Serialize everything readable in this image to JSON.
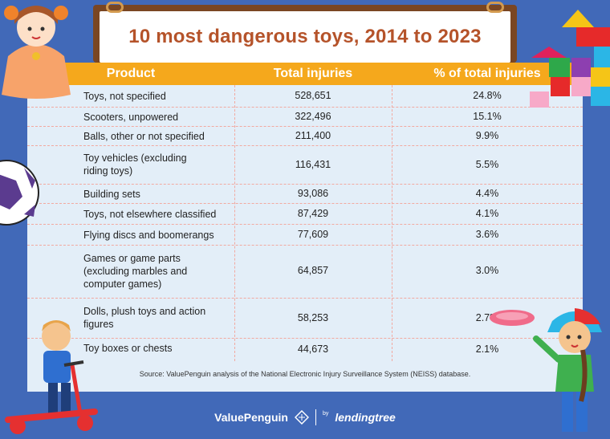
{
  "title": "10 most dangerous toys, 2014 to 2023",
  "columns": [
    "Product",
    "Total injuries",
    "% of total injuries"
  ],
  "rows": [
    {
      "product": "Toys, not specified",
      "injuries": "528,651",
      "pct": "24.8%"
    },
    {
      "product": "Scooters, unpowered",
      "injuries": "322,496",
      "pct": "15.1%"
    },
    {
      "product": "Balls, other or not specified",
      "injuries": "211,400",
      "pct": "9.9%"
    },
    {
      "product": "Toy vehicles (excluding riding toys)",
      "injuries": "116,431",
      "pct": "5.5%"
    },
    {
      "product": "Building sets",
      "injuries": "93,086",
      "pct": "4.4%"
    },
    {
      "product": "Toys, not elsewhere classified",
      "injuries": "87,429",
      "pct": "4.1%"
    },
    {
      "product": "Flying discs and boomerangs",
      "injuries": "77,609",
      "pct": "3.6%"
    },
    {
      "product": "Games or game parts (excluding marbles and computer games)",
      "injuries": "64,857",
      "pct": "3.0%"
    },
    {
      "product": "Dolls, plush toys and action figures",
      "injuries": "58,253",
      "pct": "2.7%"
    },
    {
      "product": "Toy boxes or chests",
      "injuries": "44,673",
      "pct": "2.1%"
    }
  ],
  "source": "Source: ValuePenguin analysis of the National Electronic Injury Surveillance System (NEISS) database.",
  "footer": {
    "brand": "ValuePenguin",
    "partner_prefix": "by",
    "partner": "lendingtree"
  },
  "colors": {
    "background": "#4169b8",
    "header": "#f5a81c",
    "title": "#b5532a",
    "panel": "#e3eef8"
  }
}
